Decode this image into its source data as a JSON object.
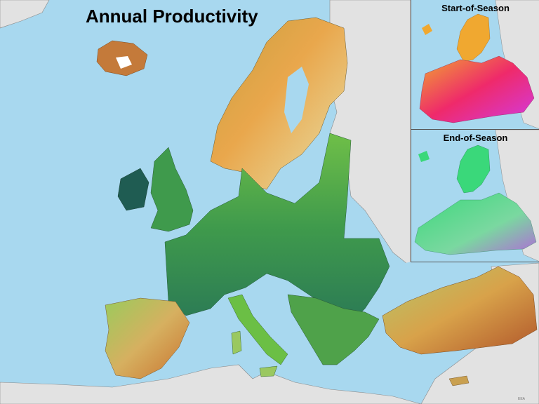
{
  "main_map": {
    "title": "Annual Productivity",
    "colors": {
      "sea": "#a8d8ef",
      "land_outside": "#e2e2e2",
      "border": "#8a8a8a",
      "high_productivity": "#1f6b52",
      "medium_productivity": "#6bbf45",
      "low_productivity": "#c9d98a",
      "very_low": "#d98a3a"
    }
  },
  "insets": [
    {
      "title": "Start-of-Season",
      "palette": [
        "#e63ad4",
        "#ef2a6a",
        "#f07a2a",
        "#f0a830"
      ]
    },
    {
      "title": "End-of-Season",
      "palette": [
        "#3ad87a",
        "#48e0a8",
        "#9a6adf",
        "#d8902a"
      ]
    }
  ],
  "credit": "EEA"
}
